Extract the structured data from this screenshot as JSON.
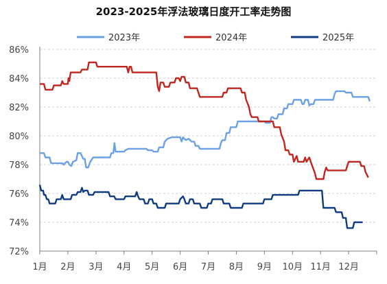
{
  "chart_data": {
    "type": "line",
    "title": "2023-2025年浮法玻璃日度开工率走势图",
    "xlabel": "",
    "ylabel": "",
    "x_ticks": [
      "1月",
      "2月",
      "3月",
      "4月",
      "5月",
      "6月",
      "7月",
      "8月",
      "9月",
      "10月",
      "11月",
      "12月"
    ],
    "x_range": [
      1,
      13
    ],
    "y_ticks": [
      "72%",
      "74%",
      "76%",
      "78%",
      "80%",
      "82%",
      "84%",
      "86%"
    ],
    "ylim": [
      72,
      86
    ],
    "grid": "horizontal-dashed",
    "legend_position": "top",
    "series": [
      {
        "name": "2023年",
        "color": "#6aa0e6",
        "points": [
          [
            1.0,
            78.8
          ],
          [
            1.15,
            78.8
          ],
          [
            1.2,
            78.5
          ],
          [
            1.35,
            78.5
          ],
          [
            1.4,
            78.1
          ],
          [
            1.8,
            78.1
          ],
          [
            1.85,
            78.0
          ],
          [
            1.95,
            78.2
          ],
          [
            2.0,
            78.2
          ],
          [
            2.05,
            78.0
          ],
          [
            2.12,
            77.9
          ],
          [
            2.18,
            78.2
          ],
          [
            2.3,
            78.3
          ],
          [
            2.35,
            78.8
          ],
          [
            2.45,
            78.8
          ],
          [
            2.55,
            78.4
          ],
          [
            2.6,
            78.4
          ],
          [
            2.65,
            77.8
          ],
          [
            2.72,
            77.8
          ],
          [
            2.8,
            78.2
          ],
          [
            2.9,
            78.5
          ],
          [
            3.5,
            78.5
          ],
          [
            3.55,
            78.8
          ],
          [
            3.62,
            78.8
          ],
          [
            3.66,
            79.5
          ],
          [
            3.7,
            78.9
          ],
          [
            4.0,
            78.9
          ],
          [
            4.05,
            79.0
          ],
          [
            4.15,
            79.1
          ],
          [
            4.8,
            79.1
          ],
          [
            4.85,
            79.0
          ],
          [
            5.0,
            79.0
          ],
          [
            5.05,
            78.9
          ],
          [
            5.2,
            78.9
          ],
          [
            5.25,
            79.2
          ],
          [
            5.4,
            79.2
          ],
          [
            5.45,
            79.6
          ],
          [
            5.55,
            79.8
          ],
          [
            5.7,
            79.9
          ],
          [
            6.0,
            79.9
          ],
          [
            6.05,
            79.6
          ],
          [
            6.1,
            79.9
          ],
          [
            6.2,
            79.7
          ],
          [
            6.3,
            79.8
          ],
          [
            6.4,
            79.6
          ],
          [
            6.5,
            79.6
          ],
          [
            6.55,
            79.3
          ],
          [
            6.65,
            79.3
          ],
          [
            6.7,
            79.1
          ],
          [
            7.4,
            79.1
          ],
          [
            7.45,
            79.5
          ],
          [
            7.5,
            79.7
          ],
          [
            7.6,
            79.7
          ],
          [
            7.65,
            80.2
          ],
          [
            7.75,
            80.2
          ],
          [
            7.8,
            80.6
          ],
          [
            8.0,
            80.6
          ],
          [
            8.05,
            81.0
          ],
          [
            9.0,
            81.0
          ],
          [
            9.05,
            80.9
          ],
          [
            9.2,
            80.9
          ],
          [
            9.25,
            81.3
          ],
          [
            9.3,
            81.3
          ],
          [
            9.35,
            81.2
          ],
          [
            9.45,
            81.2
          ],
          [
            9.5,
            81.5
          ],
          [
            9.65,
            81.5
          ],
          [
            9.7,
            81.9
          ],
          [
            9.8,
            81.9
          ],
          [
            9.85,
            82.2
          ],
          [
            10.0,
            82.2
          ],
          [
            10.05,
            82.5
          ],
          [
            10.3,
            82.5
          ],
          [
            10.35,
            82.2
          ],
          [
            10.4,
            82.2
          ],
          [
            10.45,
            82.5
          ],
          [
            10.55,
            82.5
          ],
          [
            10.6,
            82.1
          ],
          [
            10.65,
            82.2
          ],
          [
            10.75,
            82.2
          ],
          [
            10.8,
            82.5
          ],
          [
            11.45,
            82.5
          ],
          [
            11.5,
            82.9
          ],
          [
            11.55,
            83.1
          ],
          [
            11.85,
            83.1
          ],
          [
            11.9,
            83.0
          ],
          [
            12.1,
            83.0
          ],
          [
            12.15,
            82.7
          ],
          [
            12.7,
            82.7
          ],
          [
            12.75,
            82.4
          ]
        ]
      },
      {
        "name": "2024年",
        "color": "#c0261d",
        "points": [
          [
            1.0,
            83.6
          ],
          [
            1.15,
            83.6
          ],
          [
            1.2,
            83.2
          ],
          [
            1.45,
            83.2
          ],
          [
            1.5,
            83.5
          ],
          [
            1.75,
            83.5
          ],
          [
            1.8,
            83.8
          ],
          [
            1.85,
            83.6
          ],
          [
            2.0,
            83.6
          ],
          [
            2.02,
            84.0
          ],
          [
            2.05,
            83.8
          ],
          [
            2.1,
            84.4
          ],
          [
            2.45,
            84.4
          ],
          [
            2.5,
            84.6
          ],
          [
            2.7,
            84.6
          ],
          [
            2.75,
            85.1
          ],
          [
            3.0,
            85.1
          ],
          [
            3.05,
            84.8
          ],
          [
            4.1,
            84.8
          ],
          [
            4.15,
            84.4
          ],
          [
            4.2,
            84.8
          ],
          [
            4.25,
            84.8
          ],
          [
            4.3,
            84.4
          ],
          [
            5.15,
            84.4
          ],
          [
            5.2,
            83.4
          ],
          [
            5.25,
            83.1
          ],
          [
            5.3,
            83.7
          ],
          [
            5.4,
            83.7
          ],
          [
            5.45,
            83.4
          ],
          [
            5.6,
            83.4
          ],
          [
            5.65,
            83.7
          ],
          [
            5.8,
            83.7
          ],
          [
            5.85,
            84.0
          ],
          [
            5.95,
            84.0
          ],
          [
            6.0,
            83.8
          ],
          [
            6.05,
            84.1
          ],
          [
            6.15,
            84.1
          ],
          [
            6.2,
            83.7
          ],
          [
            6.3,
            83.7
          ],
          [
            6.35,
            83.3
          ],
          [
            6.6,
            83.3
          ],
          [
            6.65,
            83.0
          ],
          [
            6.7,
            82.7
          ],
          [
            7.5,
            82.7
          ],
          [
            7.55,
            83.0
          ],
          [
            7.65,
            83.0
          ],
          [
            7.7,
            83.3
          ],
          [
            8.15,
            83.3
          ],
          [
            8.2,
            83.0
          ],
          [
            8.3,
            83.0
          ],
          [
            8.35,
            82.5
          ],
          [
            8.45,
            82.0
          ],
          [
            8.5,
            81.5
          ],
          [
            8.55,
            81.3
          ],
          [
            8.75,
            81.3
          ],
          [
            8.8,
            81.0
          ],
          [
            9.3,
            81.0
          ],
          [
            9.35,
            80.6
          ],
          [
            9.55,
            80.6
          ],
          [
            9.6,
            80.1
          ],
          [
            9.7,
            79.6
          ],
          [
            9.75,
            79.0
          ],
          [
            9.85,
            79.0
          ],
          [
            9.9,
            78.7
          ],
          [
            10.0,
            78.7
          ],
          [
            10.05,
            78.2
          ],
          [
            10.15,
            78.6
          ],
          [
            10.2,
            78.2
          ],
          [
            10.4,
            78.2
          ],
          [
            10.45,
            78.5
          ],
          [
            10.5,
            78.2
          ],
          [
            10.6,
            78.5
          ],
          [
            10.65,
            78.2
          ],
          [
            10.8,
            77.4
          ],
          [
            10.85,
            77.0
          ],
          [
            11.1,
            77.0
          ],
          [
            11.15,
            77.5
          ],
          [
            11.2,
            77.8
          ],
          [
            11.25,
            77.6
          ],
          [
            11.9,
            77.6
          ],
          [
            11.95,
            77.9
          ],
          [
            12.0,
            78.2
          ],
          [
            12.4,
            78.2
          ],
          [
            12.45,
            77.9
          ],
          [
            12.55,
            77.9
          ],
          [
            12.6,
            77.5
          ],
          [
            12.65,
            77.3
          ],
          [
            12.7,
            77.1
          ]
        ]
      },
      {
        "name": "2025年",
        "color": "#0f3b82",
        "points": [
          [
            1.0,
            76.6
          ],
          [
            1.05,
            76.2
          ],
          [
            1.12,
            76.2
          ],
          [
            1.15,
            75.9
          ],
          [
            1.2,
            75.9
          ],
          [
            1.25,
            75.6
          ],
          [
            1.3,
            75.6
          ],
          [
            1.35,
            75.3
          ],
          [
            1.55,
            75.3
          ],
          [
            1.6,
            75.6
          ],
          [
            1.75,
            75.6
          ],
          [
            1.8,
            75.9
          ],
          [
            1.85,
            75.6
          ],
          [
            2.1,
            75.6
          ],
          [
            2.15,
            75.9
          ],
          [
            2.3,
            75.9
          ],
          [
            2.35,
            76.1
          ],
          [
            2.45,
            76.1
          ],
          [
            2.5,
            76.4
          ],
          [
            2.55,
            76.1
          ],
          [
            2.6,
            76.2
          ],
          [
            2.7,
            76.2
          ],
          [
            2.75,
            75.9
          ],
          [
            2.9,
            75.9
          ],
          [
            2.95,
            76.1
          ],
          [
            3.45,
            76.1
          ],
          [
            3.5,
            75.8
          ],
          [
            3.65,
            75.8
          ],
          [
            3.7,
            75.6
          ],
          [
            4.0,
            75.6
          ],
          [
            4.05,
            75.8
          ],
          [
            4.4,
            75.8
          ],
          [
            4.45,
            76.1
          ],
          [
            4.5,
            75.8
          ],
          [
            4.55,
            75.6
          ],
          [
            4.7,
            75.6
          ],
          [
            4.75,
            75.3
          ],
          [
            4.85,
            75.3
          ],
          [
            4.9,
            75.6
          ],
          [
            5.0,
            75.6
          ],
          [
            5.05,
            75.3
          ],
          [
            5.15,
            75.3
          ],
          [
            5.2,
            75.0
          ],
          [
            5.45,
            75.0
          ],
          [
            5.5,
            75.3
          ],
          [
            5.95,
            75.3
          ],
          [
            6.0,
            75.6
          ],
          [
            6.1,
            75.8
          ],
          [
            6.15,
            75.6
          ],
          [
            6.2,
            75.3
          ],
          [
            6.3,
            75.3
          ],
          [
            6.35,
            75.6
          ],
          [
            6.45,
            75.6
          ],
          [
            6.5,
            75.3
          ],
          [
            6.7,
            75.3
          ],
          [
            6.75,
            75.0
          ],
          [
            6.95,
            75.0
          ],
          [
            7.0,
            75.3
          ],
          [
            7.1,
            75.3
          ],
          [
            7.15,
            75.6
          ],
          [
            7.5,
            75.6
          ],
          [
            7.55,
            75.3
          ],
          [
            7.75,
            75.3
          ],
          [
            7.8,
            75.0
          ],
          [
            8.2,
            75.0
          ],
          [
            8.25,
            75.3
          ],
          [
            8.95,
            75.3
          ],
          [
            9.0,
            75.6
          ],
          [
            9.25,
            75.6
          ],
          [
            9.3,
            75.9
          ],
          [
            10.2,
            75.9
          ],
          [
            10.25,
            76.2
          ],
          [
            11.05,
            76.2
          ],
          [
            11.1,
            75.0
          ],
          [
            11.5,
            75.0
          ],
          [
            11.55,
            74.7
          ],
          [
            11.75,
            74.7
          ],
          [
            11.8,
            74.3
          ],
          [
            11.9,
            74.3
          ],
          [
            11.95,
            73.6
          ],
          [
            12.15,
            73.6
          ],
          [
            12.2,
            74.0
          ],
          [
            12.5,
            74.0
          ]
        ]
      }
    ]
  }
}
